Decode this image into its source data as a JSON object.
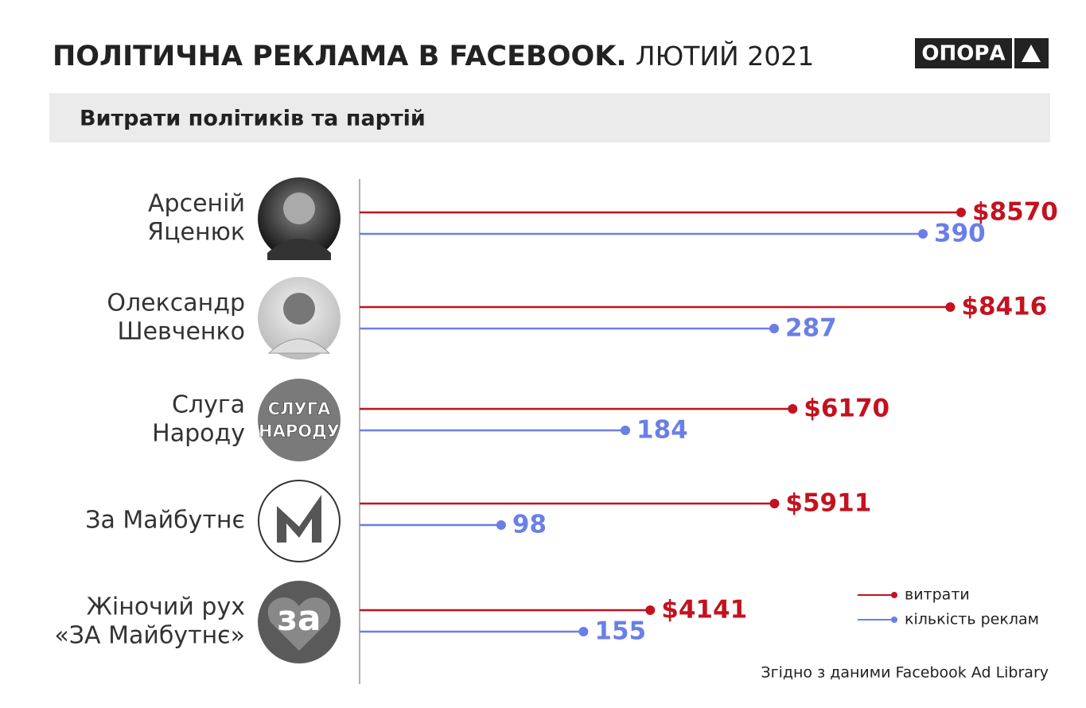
{
  "brand": "ОПОРА",
  "chart_data": {
    "type": "lollipop",
    "title": "ПОЛІТИЧНА РЕКЛАМА В FACEBOOK.",
    "title_date": "ЛЮТИЙ 2021",
    "subtitle": "Витрати політиків та партій",
    "source": "Згідно з даними Facebook Ad Library",
    "categories": [
      [
        "Арсеній",
        "Яценюк"
      ],
      [
        "Олександр",
        "Шевченко"
      ],
      [
        "Слуга",
        "Народу"
      ],
      [
        "За Майбутнє"
      ],
      [
        "Жіночий рух",
        "«ЗА Майбутнє»"
      ]
    ],
    "badges": {
      "sluha": [
        "СЛУГА",
        "НАРОДУ"
      ],
      "za": "за"
    },
    "series": [
      {
        "name": "витрати",
        "color": "#c4121f",
        "values": [
          8570,
          8416,
          6170,
          5911,
          4141
        ],
        "value_labels": [
          "$8570",
          "$8416",
          "$6170",
          "$5911",
          "$4141"
        ]
      },
      {
        "name": "кількість реклам",
        "color": "#6a7fe6",
        "values": [
          390,
          287,
          184,
          98,
          155
        ]
      }
    ]
  }
}
